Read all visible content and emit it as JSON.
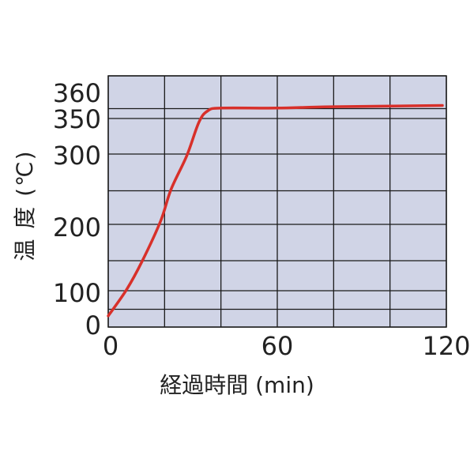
{
  "chart_data": {
    "type": "line",
    "title": "",
    "xlabel": "経過時間 (min)",
    "ylabel": "温 度 (℃)",
    "xlim": [
      0,
      120
    ],
    "x_ticks": [
      0,
      60,
      120
    ],
    "y_ticks": [
      0,
      100,
      200,
      300,
      350,
      360
    ],
    "y_scale": "non-linear (irregular spacing)",
    "grid": true,
    "background_color": "#d0d4e6",
    "line_color": "#d8302a",
    "series": [
      {
        "x": [
          0,
          6.5,
          12.1,
          18.6,
          22.3,
          27.9,
          32.2,
          35.4,
          40.1,
          59.7,
          79.4,
          118.6
        ],
        "y": [
          29,
          104,
          148,
          208,
          252,
          299,
          345,
          353,
          354,
          354,
          354.5,
          355
        ]
      }
    ]
  }
}
